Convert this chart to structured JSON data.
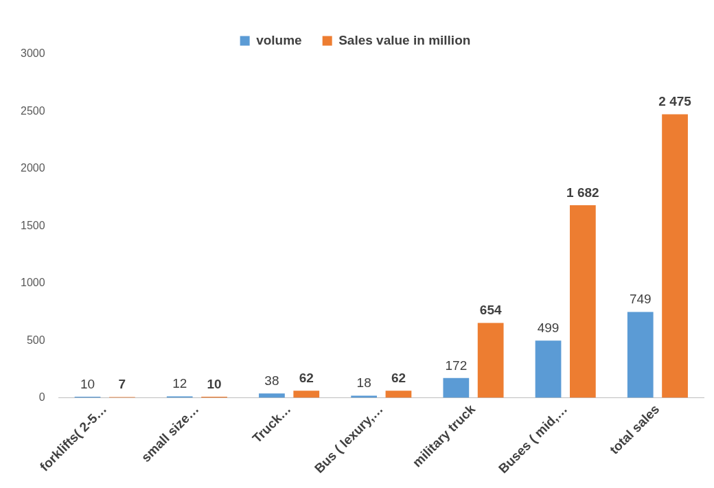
{
  "chart_data": {
    "type": "bar",
    "categories": [
      "forklifts( 2-5…",
      "small size…",
      "Truck…",
      "Bus ( lexury,…",
      "military truck",
      "Buses ( mid,…",
      "total sales"
    ],
    "series": [
      {
        "name": "volume",
        "color": "#5b9bd5",
        "values": [
          10,
          12,
          38,
          18,
          172,
          499,
          749
        ],
        "value_labels": [
          "10",
          "12",
          "38",
          "18",
          "172",
          "499",
          "749"
        ]
      },
      {
        "name": "Sales value in million",
        "color": "#ed7d31",
        "values": [
          7,
          10,
          62,
          62,
          654,
          1682,
          2475
        ],
        "value_labels": [
          "7",
          "10",
          "62",
          "62",
          "654",
          "1 682",
          "2 475"
        ]
      }
    ],
    "ylim": [
      0,
      3000
    ],
    "yticks": [
      0,
      500,
      1000,
      1500,
      2000,
      2500,
      3000
    ],
    "grid": false,
    "legend": "top"
  }
}
